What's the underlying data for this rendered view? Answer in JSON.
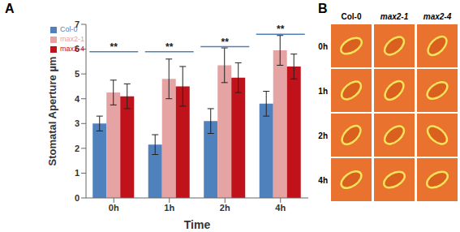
{
  "chart_data": {
    "type": "bar",
    "panel": "A",
    "x_label": "Time",
    "y_label": "Stomatal Aperture µm",
    "categories": [
      "0h",
      "1h",
      "2h",
      "4h"
    ],
    "series": [
      {
        "name": "Col-0",
        "color": "#4f81bd",
        "values": [
          3.0,
          2.15,
          3.1,
          3.8
        ],
        "errors": [
          0.3,
          0.4,
          0.5,
          0.5
        ]
      },
      {
        "name": "max2-1",
        "color": "#e6a3a3",
        "values": [
          4.25,
          4.8,
          5.35,
          5.95
        ],
        "errors": [
          0.5,
          0.8,
          0.7,
          0.6
        ]
      },
      {
        "name": "max2-4",
        "color": "#c0121b",
        "values": [
          4.1,
          4.5,
          4.85,
          5.3
        ],
        "errors": [
          0.5,
          0.8,
          0.6,
          0.5
        ]
      }
    ],
    "ylim": [
      0,
      7
    ],
    "yticks": [
      0,
      1,
      2,
      3,
      4,
      5,
      6,
      7
    ],
    "grid": false,
    "legend": "upper left",
    "annotations": [
      {
        "text": "**",
        "category": "0h",
        "y": 5.9
      },
      {
        "text": "**",
        "category": "1h",
        "y": 5.9
      },
      {
        "text": "**",
        "category": "2h",
        "y": 6.1
      },
      {
        "text": "**",
        "category": "4h",
        "y": 6.6
      }
    ]
  },
  "image_panel": {
    "label": "B",
    "columns": [
      "Col-0",
      "max2-1",
      "max2-4"
    ],
    "rows": [
      "0h",
      "1h",
      "2h",
      "4h"
    ]
  }
}
